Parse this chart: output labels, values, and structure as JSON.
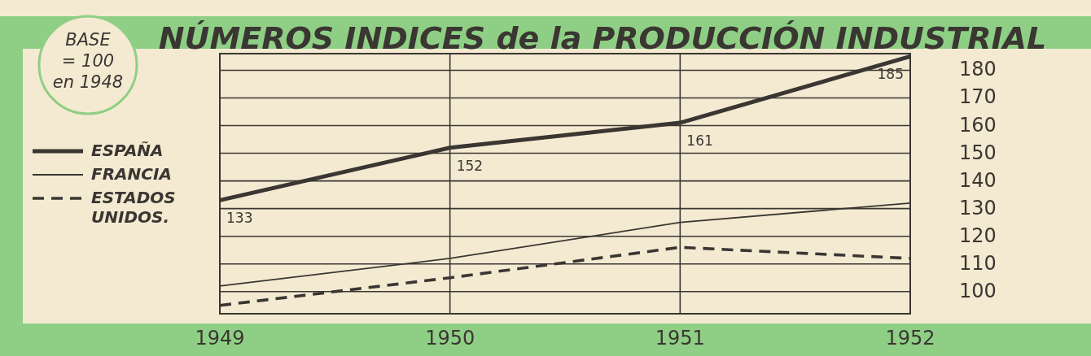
{
  "chart_data": {
    "type": "line",
    "title": "NÚMEROS INDICES de la PRODUCCIÓN INDUSTRIAL",
    "annotations": [
      "BASE = 100 en 1948"
    ],
    "x": [
      1949,
      1950,
      1951,
      1952
    ],
    "xlim": [
      1949,
      1952
    ],
    "xticks": [
      1949,
      1950,
      1951,
      1952
    ],
    "ylim": [
      92,
      186
    ],
    "yticks": [
      100,
      110,
      120,
      130,
      140,
      150,
      160,
      170,
      180
    ],
    "grid": true,
    "legend": "left",
    "series": [
      {
        "name": "ESPAÑA",
        "color": "#3a3632",
        "line_style": "solid",
        "values": [
          133,
          152,
          161,
          185
        ],
        "value_labels": [
          "133",
          "152",
          "161",
          "185"
        ]
      },
      {
        "name": "FRANCIA",
        "color": "#3a3632",
        "line_style": "solid",
        "values": [
          102,
          112,
          125,
          132
        ]
      },
      {
        "name": "ESTADOS UNIDOS.",
        "color": "#3a3632",
        "line_style": "dashed",
        "values": [
          95,
          105,
          116,
          112
        ]
      }
    ]
  }
}
